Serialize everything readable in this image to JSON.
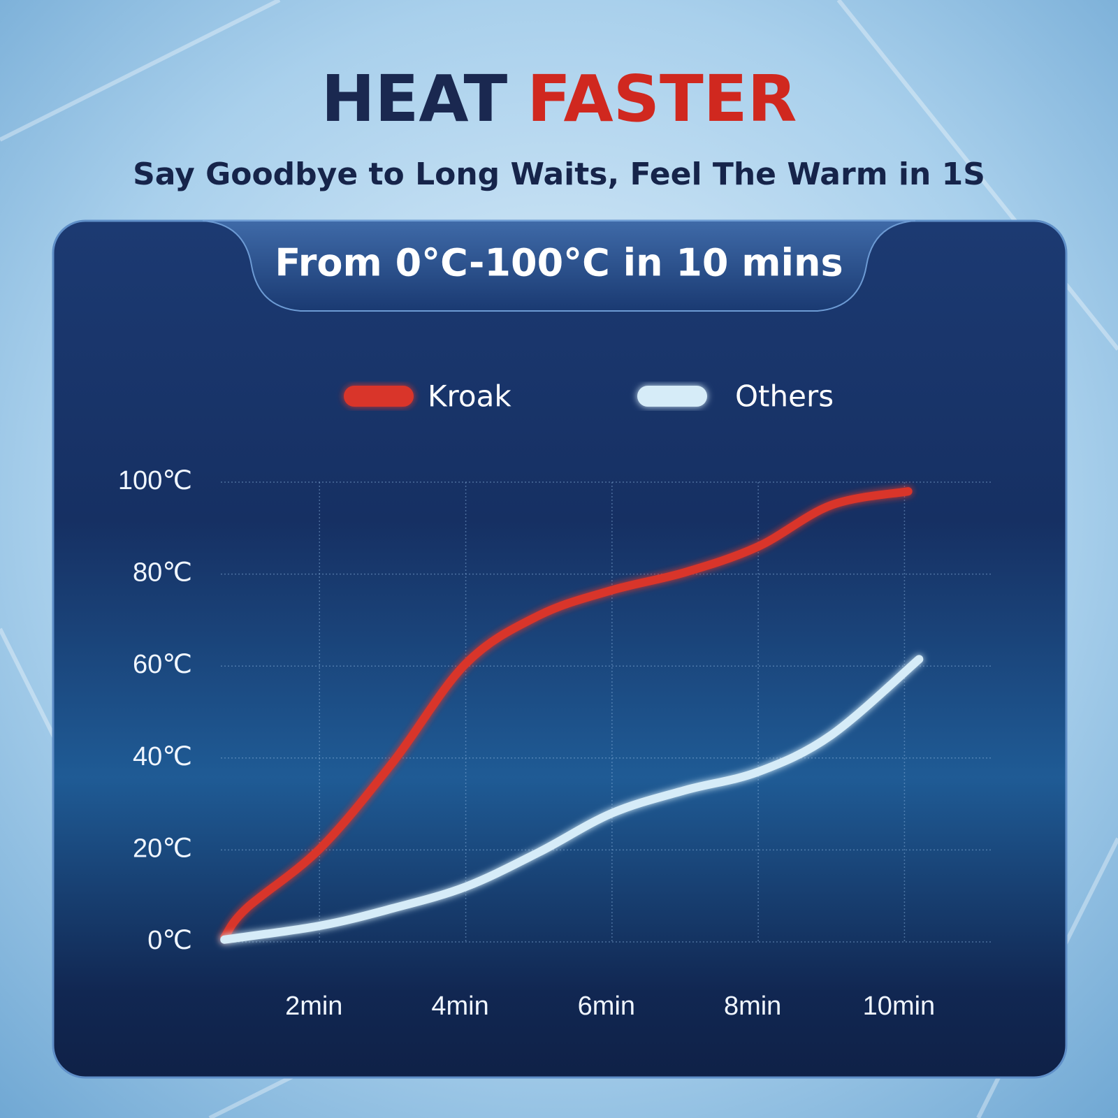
{
  "title": [
    "HEAT",
    "FASTER"
  ],
  "subtitle": "Say Goodbye to Long Waits, Feel The Warm in 1S",
  "chart_data": {
    "type": "line",
    "annotation": "From 0°C-100°C in 10 mins",
    "xlim": [
      0.65,
      11.2
    ],
    "ylim": [
      0,
      100
    ],
    "xticks": [
      {
        "value": 2,
        "label": "2min"
      },
      {
        "value": 4,
        "label": "4min"
      },
      {
        "value": 6,
        "label": "6min"
      },
      {
        "value": 8,
        "label": "8min"
      },
      {
        "value": 10,
        "label": "10min"
      }
    ],
    "yticks": [
      {
        "value": 0,
        "label": "0℃"
      },
      {
        "value": 20,
        "label": "20℃"
      },
      {
        "value": 40,
        "label": "40℃"
      },
      {
        "value": 60,
        "label": "60℃"
      },
      {
        "value": 80,
        "label": "80℃"
      },
      {
        "value": 100,
        "label": "100℃"
      }
    ],
    "grid": true,
    "series": [
      {
        "name": "Kroak",
        "color": "#d9352a",
        "x": [
          0.7,
          1,
          2,
          3,
          4,
          5,
          6,
          7,
          8,
          9,
          10.05
        ],
        "values": [
          1,
          7.3,
          20.2,
          39,
          60.5,
          71,
          76.5,
          80.4,
          86,
          95,
          98
        ]
      },
      {
        "name": "Others",
        "color": "#d6ecf8",
        "x": [
          0.7,
          2,
          3,
          4,
          5,
          6,
          7,
          8,
          9,
          10.2
        ],
        "values": [
          0.5,
          3.5,
          7.3,
          12,
          19.5,
          28,
          33,
          37,
          45,
          61.5
        ]
      }
    ]
  }
}
